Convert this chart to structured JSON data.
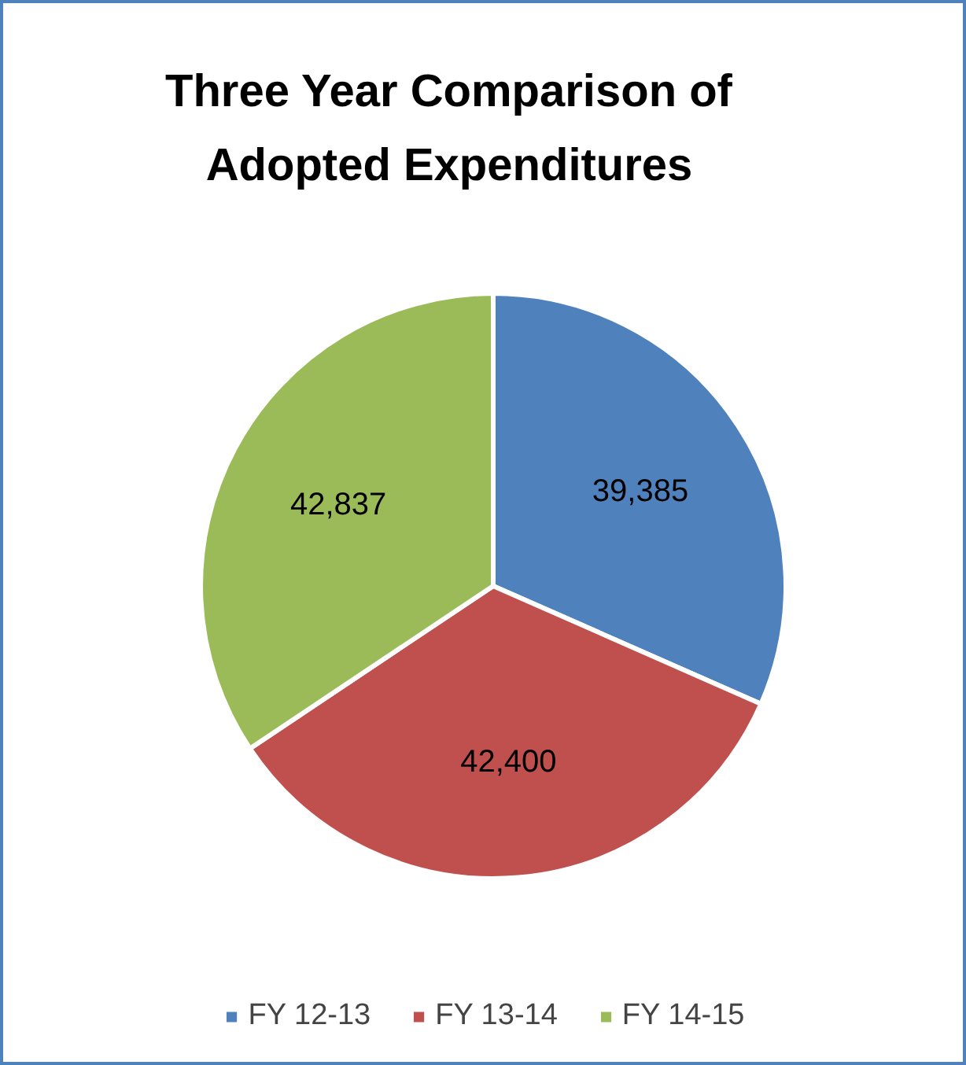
{
  "chart_data": {
    "type": "pie",
    "title": "Three Year Comparison of Adopted Expenditures",
    "categories": [
      "FY 12-13",
      "FY 13-14",
      "FY 14-15"
    ],
    "values": [
      39385,
      42400,
      42837
    ],
    "colors": [
      "#4f81bd",
      "#c0504d",
      "#9bbb59"
    ],
    "value_labels": [
      "39,385",
      "42,400",
      "42,837"
    ],
    "legend": "bottom"
  }
}
